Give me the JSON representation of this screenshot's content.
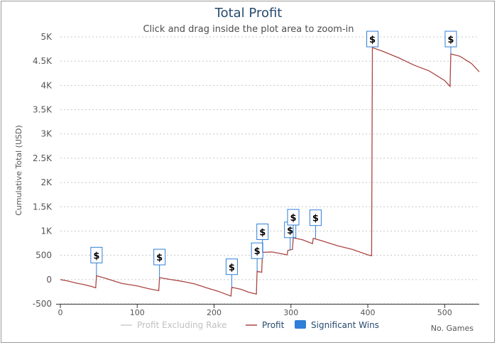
{
  "chart_data": {
    "type": "line",
    "title": "Total Profit",
    "subtitle": "Click and drag inside the plot area to zoom-in",
    "xlabel": "No. Games",
    "ylabel": "Cumulative Total (USD)",
    "xlim": [
      0,
      545
    ],
    "ylim": [
      -500,
      5000
    ],
    "x_ticks": [
      0,
      100,
      200,
      300,
      400,
      500
    ],
    "y_ticks": [
      -500,
      0,
      500,
      1000,
      1500,
      2000,
      2500,
      3000,
      3500,
      4000,
      4500,
      5000
    ],
    "y_tick_labels": [
      "-500",
      "0",
      "500",
      "1K",
      "1.5K",
      "2K",
      "2.5K",
      "3K",
      "3.5K",
      "4K",
      "4.5K",
      "5K"
    ],
    "grid": true,
    "legend_position": "bottom",
    "series": [
      {
        "name": "Profit Excluding Rake",
        "color": "#cccccc",
        "values": []
      },
      {
        "name": "Profit",
        "color": "#aa4643",
        "points": [
          [
            0,
            0
          ],
          [
            10,
            -30
          ],
          [
            20,
            -70
          ],
          [
            30,
            -100
          ],
          [
            40,
            -140
          ],
          [
            46,
            -170
          ],
          [
            47,
            80
          ],
          [
            60,
            20
          ],
          [
            80,
            -80
          ],
          [
            100,
            -130
          ],
          [
            115,
            -190
          ],
          [
            128,
            -230
          ],
          [
            129,
            40
          ],
          [
            140,
            10
          ],
          [
            160,
            -40
          ],
          [
            175,
            -90
          ],
          [
            190,
            -170
          ],
          [
            205,
            -240
          ],
          [
            222,
            -340
          ],
          [
            223,
            -160
          ],
          [
            235,
            -200
          ],
          [
            245,
            -260
          ],
          [
            255,
            -300
          ],
          [
            256,
            170
          ],
          [
            262,
            150
          ],
          [
            263,
            560
          ],
          [
            275,
            570
          ],
          [
            285,
            540
          ],
          [
            295,
            510
          ],
          [
            296,
            600
          ],
          [
            302,
            620
          ],
          [
            303,
            860
          ],
          [
            315,
            820
          ],
          [
            328,
            740
          ],
          [
            329,
            850
          ],
          [
            340,
            800
          ],
          [
            360,
            700
          ],
          [
            380,
            620
          ],
          [
            400,
            510
          ],
          [
            405,
            490
          ],
          [
            406,
            4780
          ],
          [
            420,
            4700
          ],
          [
            440,
            4570
          ],
          [
            460,
            4420
          ],
          [
            480,
            4300
          ],
          [
            500,
            4100
          ],
          [
            507,
            3980
          ],
          [
            508,
            4650
          ],
          [
            520,
            4600
          ],
          [
            535,
            4450
          ],
          [
            545,
            4280
          ]
        ]
      }
    ],
    "significant_wins": {
      "name": "Significant Wins",
      "color": "#2f7ed8",
      "marker_text": "$",
      "x": [
        47,
        129,
        223,
        256,
        263,
        299,
        303,
        332,
        406,
        508
      ]
    }
  }
}
